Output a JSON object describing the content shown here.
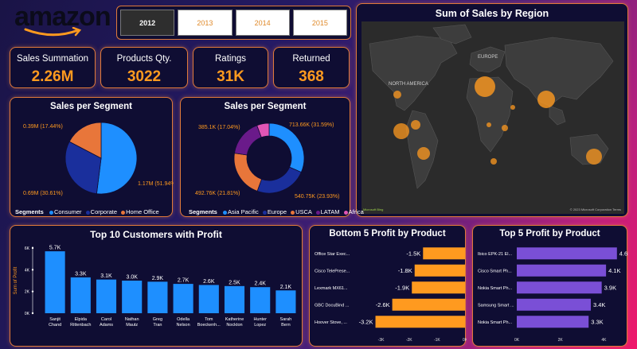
{
  "brand": {
    "logo_text": "amazon"
  },
  "year_filter": [
    {
      "label": "2012",
      "selected": true
    },
    {
      "label": "2013",
      "selected": false
    },
    {
      "label": "2014",
      "selected": false
    },
    {
      "label": "2015",
      "selected": false
    }
  ],
  "kpis": [
    {
      "label": "Sales Summation",
      "value": "2.26M"
    },
    {
      "label": "Products Qty.",
      "value": "3022"
    },
    {
      "label": "Ratings",
      "value": "31K"
    },
    {
      "label": "Returned",
      "value": "368"
    }
  ],
  "map": {
    "title": "Sum of Sales by Region",
    "labels": [
      "NORTH AMERICA",
      "EUROPE"
    ],
    "ms_logo": "Microsoft Bing",
    "copyright": "© 2023 Microsoft Corporation  Terms"
  },
  "colors": {
    "accent": "#ff9a1f",
    "card_bg": "#0f0d33",
    "card_border": "#e07a3a",
    "bar_blue": "#1e8fff",
    "bar_orange": "#ff9a1f",
    "bar_purple": "#7a4fd6"
  },
  "chart_data": [
    {
      "id": "pie",
      "type": "pie",
      "title": "Sales per Segment",
      "legend_title": "Segments",
      "slices": [
        {
          "name": "Consumer",
          "value": 1.17,
          "label": "1.17M (51.94%)",
          "color": "#1e8fff"
        },
        {
          "name": "Corporate",
          "value": 0.69,
          "label": "0.69M (30.61%)",
          "color": "#1a2f9c"
        },
        {
          "name": "Home Office",
          "value": 0.39,
          "label": "0.39M (17.44%)",
          "color": "#e8763a"
        }
      ]
    },
    {
      "id": "donut",
      "type": "pie",
      "title": "Sales per Segment",
      "legend_title": "Segments",
      "slices": [
        {
          "name": "Asia Pacific",
          "value": 713.66,
          "label": "713.66K (31.59%)",
          "color": "#1e8fff"
        },
        {
          "name": "Europe",
          "value": 540.75,
          "label": "540.75K (23.93%)",
          "color": "#1a2f9c"
        },
        {
          "name": "USCA",
          "value": 492.76,
          "label": "492.76K (21.81%)",
          "color": "#e8763a"
        },
        {
          "name": "LATAM",
          "value": 385.1,
          "label": "385.1K (17.04%)",
          "color": "#6a1a8a"
        },
        {
          "name": "Africa",
          "value": 127.9,
          "label": "",
          "color": "#e055b5"
        }
      ]
    },
    {
      "id": "customers",
      "type": "bar",
      "title": "Top 10 Customers with Profit",
      "ylabel": "Sum of Profit",
      "ylim": [
        0,
        6
      ],
      "yticks": [
        "0K",
        "2K",
        "4K",
        "6K"
      ],
      "categories": [
        "Sanjit Chand",
        "Elpida Rittenbach",
        "Carol Adams",
        "Nathan Mautz",
        "Greg Tran",
        "Odella Nelson",
        "Tom Boeckenh...",
        "Katherine Nockton",
        "Hunter Lopez",
        "Sarah Bern"
      ],
      "values": [
        5.7,
        3.3,
        3.1,
        3.0,
        2.9,
        2.7,
        2.6,
        2.5,
        2.4,
        2.1
      ],
      "data_labels": [
        "5.7K",
        "3.3K",
        "3.1K",
        "3.0K",
        "2.9K",
        "2.7K",
        "2.6K",
        "2.5K",
        "2.4K",
        "2.1K"
      ]
    },
    {
      "id": "bottom5",
      "type": "bar",
      "orientation": "horizontal",
      "title": "Bottom 5 Profit by Product",
      "xlim": [
        -3.5,
        0
      ],
      "xticks": [
        "-3K",
        "-2K",
        "-1K",
        "0K"
      ],
      "categories": [
        "Office Star Exec...",
        "Cisco TelePrese...",
        "Lexmark MX61...",
        "GBC DocuBind ...",
        "Hoover Stove, ..."
      ],
      "values": [
        -1.5,
        -1.8,
        -1.9,
        -2.6,
        -3.2
      ],
      "data_labels": [
        "-1.5K",
        "-1.8K",
        "-1.9K",
        "-2.6K",
        "-3.2K"
      ]
    },
    {
      "id": "top5",
      "type": "bar",
      "orientation": "horizontal",
      "title": "Top 5 Profit by Product",
      "xlim": [
        0,
        4.9
      ],
      "xticks": [
        "0K",
        "2K",
        "4K"
      ],
      "categories": [
        "Ibico EPK-21 El...",
        "Cisco Smart Ph...",
        "Nokia Smart Ph...",
        "Samsung Smart ...",
        "Nokia Smart Ph..."
      ],
      "values": [
        4.6,
        4.1,
        3.9,
        3.4,
        3.3
      ],
      "data_labels": [
        "4.6K",
        "4.1K",
        "3.9K",
        "3.4K",
        "3.3K"
      ]
    }
  ]
}
